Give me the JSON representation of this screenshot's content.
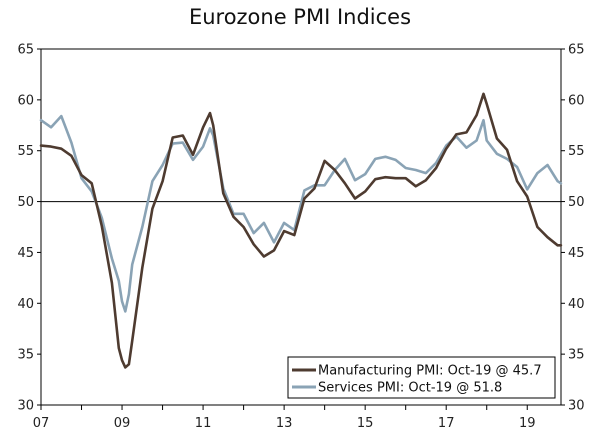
{
  "chart_data": {
    "type": "line",
    "title": "Eurozone PMI Indices",
    "xlabel": "",
    "ylabel": "",
    "x_tick_labels": [
      "07",
      "09",
      "11",
      "13",
      "15",
      "17",
      "19"
    ],
    "y_ticks": [
      30,
      35,
      40,
      45,
      50,
      55,
      60,
      65
    ],
    "ylim": [
      30,
      65
    ],
    "xlim": [
      2007.0,
      2019.833
    ],
    "reference_line": 50,
    "legend_position": "bottom-right",
    "series": [
      {
        "name": "Manufacturing PMI: Oct-19 @ 45.7",
        "color": "#4e3b30",
        "x": [
          2007.0,
          2007.25,
          2007.5,
          2007.75,
          2008.0,
          2008.25,
          2008.5,
          2008.75,
          2008.92,
          2009.0,
          2009.08,
          2009.17,
          2009.25,
          2009.5,
          2009.75,
          2010.0,
          2010.25,
          2010.5,
          2010.75,
          2011.0,
          2011.17,
          2011.25,
          2011.5,
          2011.75,
          2012.0,
          2012.25,
          2012.5,
          2012.75,
          2013.0,
          2013.25,
          2013.5,
          2013.75,
          2014.0,
          2014.25,
          2014.5,
          2014.75,
          2015.0,
          2015.25,
          2015.5,
          2015.75,
          2016.0,
          2016.25,
          2016.5,
          2016.75,
          2017.0,
          2017.25,
          2017.5,
          2017.75,
          2017.92,
          2018.0,
          2018.25,
          2018.5,
          2018.75,
          2019.0,
          2019.25,
          2019.5,
          2019.75,
          2019.83
        ],
        "values": [
          55.5,
          55.4,
          55.2,
          54.5,
          52.6,
          51.8,
          47.6,
          42.0,
          35.6,
          34.4,
          33.7,
          34.0,
          36.3,
          43.5,
          49.3,
          52.0,
          56.3,
          56.5,
          54.6,
          57.3,
          58.7,
          57.5,
          50.8,
          48.5,
          47.5,
          45.8,
          44.6,
          45.2,
          47.1,
          46.7,
          50.3,
          51.3,
          54.0,
          53.1,
          51.8,
          50.3,
          51.0,
          52.2,
          52.4,
          52.3,
          52.3,
          51.5,
          52.1,
          53.3,
          55.2,
          56.6,
          56.8,
          58.5,
          60.6,
          59.6,
          56.2,
          55.1,
          52.0,
          50.5,
          47.5,
          46.5,
          45.7,
          45.7
        ]
      },
      {
        "name": "Services PMI: Oct-19 @ 51.8",
        "color": "#8aa3b5",
        "x": [
          2007.0,
          2007.25,
          2007.5,
          2007.75,
          2008.0,
          2008.25,
          2008.5,
          2008.75,
          2008.92,
          2009.0,
          2009.08,
          2009.17,
          2009.25,
          2009.5,
          2009.75,
          2010.0,
          2010.25,
          2010.5,
          2010.75,
          2011.0,
          2011.17,
          2011.25,
          2011.5,
          2011.75,
          2012.0,
          2012.25,
          2012.5,
          2012.75,
          2013.0,
          2013.25,
          2013.5,
          2013.75,
          2014.0,
          2014.25,
          2014.5,
          2014.75,
          2015.0,
          2015.25,
          2015.5,
          2015.75,
          2016.0,
          2016.25,
          2016.5,
          2016.75,
          2017.0,
          2017.25,
          2017.5,
          2017.75,
          2017.92,
          2018.0,
          2018.25,
          2018.5,
          2018.75,
          2019.0,
          2019.25,
          2019.5,
          2019.75,
          2019.83
        ],
        "values": [
          58.0,
          57.3,
          58.4,
          55.8,
          52.3,
          51.0,
          48.4,
          44.4,
          42.2,
          40.2,
          39.2,
          40.9,
          43.8,
          47.5,
          52.0,
          53.6,
          55.7,
          55.8,
          54.1,
          55.4,
          57.2,
          56.5,
          51.3,
          48.8,
          48.8,
          46.9,
          47.9,
          46.0,
          47.9,
          47.2,
          51.1,
          51.6,
          51.6,
          53.1,
          54.2,
          52.1,
          52.7,
          54.2,
          54.4,
          54.1,
          53.3,
          53.1,
          52.8,
          53.8,
          55.5,
          56.4,
          55.3,
          56.0,
          58.0,
          56.0,
          54.7,
          54.2,
          53.4,
          51.2,
          52.8,
          53.6,
          52.0,
          51.8
        ]
      }
    ]
  }
}
